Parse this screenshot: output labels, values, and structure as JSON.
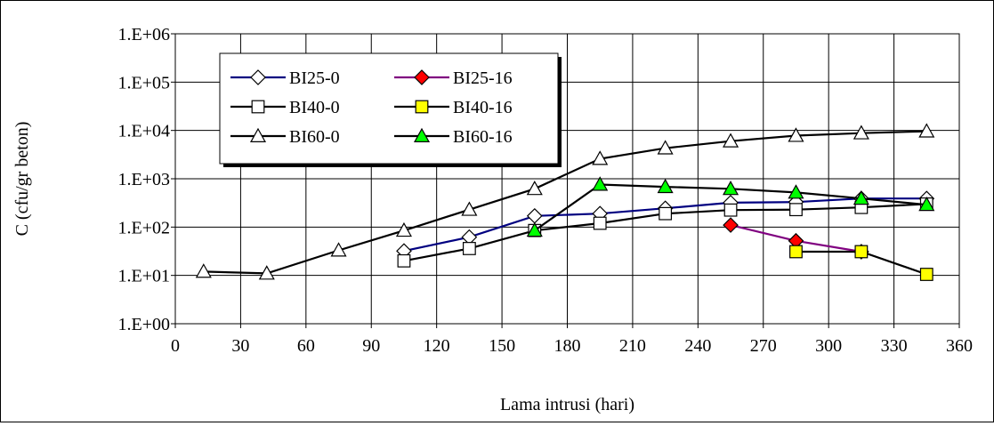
{
  "chart_data": {
    "type": "line",
    "xlabel": "Lama intrusi (hari)",
    "ylabel": "C (cfu/gr beton)",
    "xlim": [
      0,
      360
    ],
    "ylim": [
      1,
      1000000
    ],
    "yscale": "log",
    "grid": true,
    "legend_position": "top-left",
    "x_ticks": [
      "0",
      "30",
      "60",
      "90",
      "120",
      "150",
      "180",
      "210",
      "240",
      "270",
      "300",
      "330",
      "360"
    ],
    "y_ticks": [
      "1.E+00",
      "1.E+01",
      "1.E+02",
      "1.E+03",
      "1.E+04",
      "1.E+05",
      "1.E+06"
    ],
    "series": [
      {
        "name": "BI25-0",
        "line_color": "#000080",
        "marker": "diamond",
        "marker_fill": "#ffffff",
        "points": [
          [
            105,
            32
          ],
          [
            135,
            62
          ],
          [
            165,
            170
          ],
          [
            195,
            190
          ],
          [
            225,
            245
          ],
          [
            255,
            320
          ],
          [
            285,
            330
          ],
          [
            315,
            390
          ],
          [
            345,
            390
          ]
        ]
      },
      {
        "name": "BI40-0",
        "line_color": "#000000",
        "marker": "square",
        "marker_fill": "#ffffff",
        "points": [
          [
            105,
            20
          ],
          [
            135,
            36
          ],
          [
            165,
            85
          ],
          [
            195,
            120
          ],
          [
            225,
            190
          ],
          [
            255,
            225
          ],
          [
            285,
            230
          ],
          [
            315,
            255
          ],
          [
            345,
            300
          ]
        ]
      },
      {
        "name": "BI60-0",
        "line_color": "#000000",
        "marker": "triangle",
        "marker_fill": "#ffffff",
        "points": [
          [
            13,
            12
          ],
          [
            42,
            11
          ],
          [
            75,
            33
          ],
          [
            105,
            85
          ],
          [
            135,
            230
          ],
          [
            165,
            620
          ],
          [
            195,
            2600
          ],
          [
            225,
            4300
          ],
          [
            255,
            6000
          ],
          [
            285,
            7800
          ],
          [
            315,
            8800
          ],
          [
            345,
            9600
          ]
        ]
      },
      {
        "name": "BI25-16",
        "line_color": "#800080",
        "marker": "diamond",
        "marker_fill": "#ff0000",
        "points": [
          [
            255,
            110
          ],
          [
            285,
            52
          ],
          [
            315,
            31
          ]
        ]
      },
      {
        "name": "BI40-16",
        "line_color": "#000000",
        "marker": "square",
        "marker_fill": "#ffff00",
        "points": [
          [
            285,
            31
          ],
          [
            315,
            31
          ],
          [
            345,
            10.5
          ]
        ]
      },
      {
        "name": "BI60-16",
        "line_color": "#000000",
        "marker": "triangle",
        "marker_fill": "#00ff00",
        "points": [
          [
            165,
            85
          ],
          [
            195,
            760
          ],
          [
            225,
            680
          ],
          [
            255,
            620
          ],
          [
            285,
            520
          ],
          [
            315,
            390
          ],
          [
            345,
            290
          ]
        ]
      }
    ]
  }
}
